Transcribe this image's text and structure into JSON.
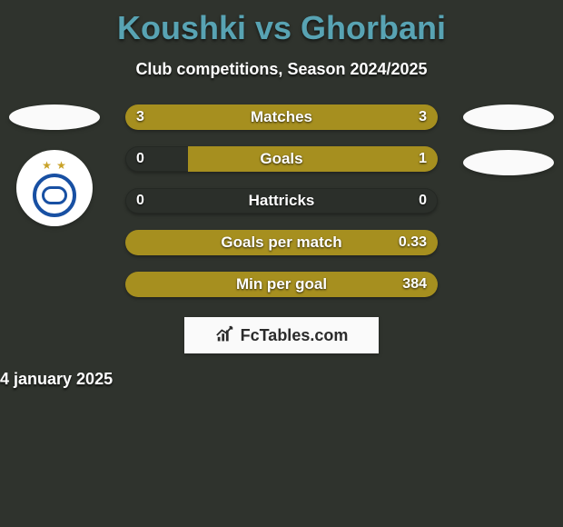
{
  "background_color": "#2f332d",
  "title": {
    "text": "Koushki vs Ghorbani",
    "color": "#58a3b3",
    "fontsize": 36
  },
  "subtitle": {
    "text": "Club competitions, Season 2024/2025",
    "color": "#ffffff",
    "fontsize": 18
  },
  "bars": {
    "track_color": "#2b2f2a",
    "fill_color": "#a68f1f",
    "label_fontsize": 17,
    "value_fontsize": 16,
    "rows": [
      {
        "label": "Matches",
        "left": "3",
        "right": "3",
        "left_pct": 50,
        "right_pct": 50
      },
      {
        "label": "Goals",
        "left": "0",
        "right": "1",
        "left_pct": 0,
        "right_pct": 80
      },
      {
        "label": "Hattricks",
        "left": "0",
        "right": "0",
        "left_pct": 0,
        "right_pct": 0
      },
      {
        "label": "Goals per match",
        "left": "",
        "right": "0.33",
        "left_pct": 0,
        "right_pct": 100
      },
      {
        "label": "Min per goal",
        "left": "",
        "right": "384",
        "left_pct": 0,
        "right_pct": 100
      }
    ]
  },
  "side_left": {
    "ellipse_color": "#fafafa",
    "club_badge": {
      "ring_color": "#1850a3",
      "star_color": "#c9a227"
    }
  },
  "side_right": {
    "ellipse_color": "#fafafa"
  },
  "branding": {
    "text": "FcTables.com",
    "background": "#fafafa",
    "text_color": "#2b2b2b",
    "icon_color": "#2b2b2b"
  },
  "date": {
    "text": "4 january 2025",
    "color": "#ffffff",
    "fontsize": 18
  }
}
